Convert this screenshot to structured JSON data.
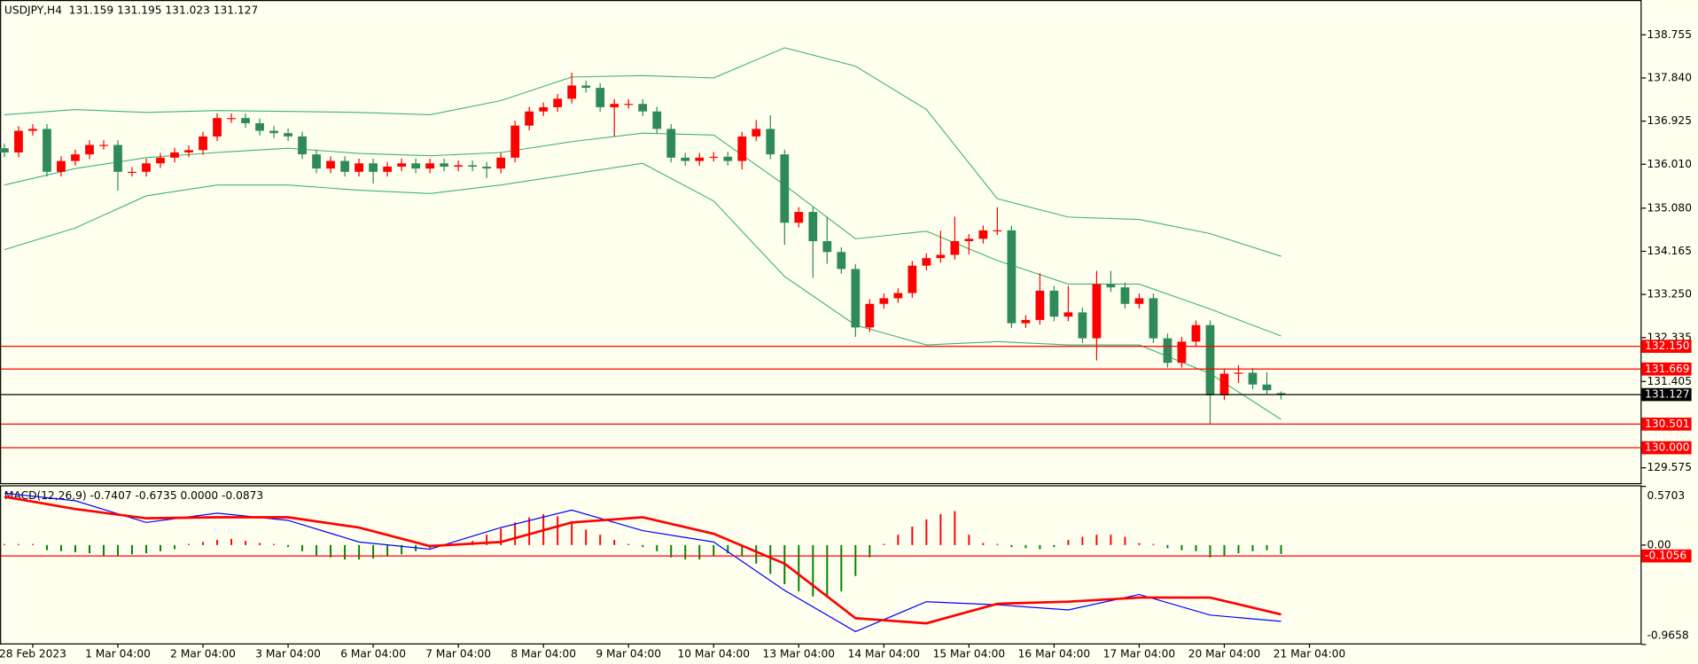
{
  "chart_data": [
    {
      "type": "candlestick",
      "title": "USDJPY,H4  131.159 131.195 131.023 131.127",
      "up_color": "#ff0000",
      "down_color": "#2e8b57",
      "band_color": "#3cb371",
      "open": [
        136.35,
        136.26,
        136.72,
        136.76,
        135.85,
        136.08,
        136.22,
        136.42,
        136.42,
        135.85,
        135.85,
        136.03,
        136.15,
        136.26,
        136.31,
        136.6,
        136.99,
        136.99,
        136.88,
        136.72,
        136.67,
        136.6,
        136.22,
        135.92,
        136.08,
        135.85,
        136.03,
        135.85,
        135.96,
        136.03,
        135.92,
        136.03,
        135.96,
        135.99,
        135.96,
        135.92,
        136.15,
        136.83,
        137.13,
        137.22,
        137.4,
        137.68,
        137.63,
        137.22,
        137.29,
        137.29,
        137.13,
        136.76,
        136.15,
        136.08,
        136.15,
        136.17,
        136.08,
        136.6,
        136.76,
        136.22,
        134.77,
        135.0,
        134.38,
        134.15,
        133.79,
        132.55,
        133.05,
        133.17,
        133.28,
        133.86,
        134.02,
        134.09,
        134.38,
        134.43,
        134.61,
        134.61,
        132.64,
        132.71,
        133.33,
        132.78,
        132.87,
        132.32,
        133.47,
        133.4,
        133.05,
        133.17,
        132.32,
        131.8,
        132.25,
        132.6,
        131.11,
        131.57,
        131.59,
        131.34,
        131.159
      ],
      "high": [
        136.45,
        136.82,
        136.86,
        136.86,
        136.18,
        136.32,
        136.52,
        136.52,
        136.52,
        135.95,
        136.13,
        136.25,
        136.36,
        136.41,
        136.7,
        137.09,
        137.09,
        137.09,
        136.98,
        136.82,
        136.77,
        136.7,
        136.32,
        136.18,
        136.18,
        136.13,
        136.13,
        136.06,
        136.13,
        136.13,
        136.13,
        136.13,
        136.09,
        136.09,
        136.06,
        136.25,
        136.93,
        137.23,
        137.32,
        137.5,
        137.95,
        137.78,
        137.73,
        137.39,
        137.39,
        137.39,
        137.23,
        136.86,
        136.25,
        136.25,
        136.27,
        136.27,
        136.7,
        136.95,
        137.05,
        136.32,
        135.1,
        135.1,
        134.9,
        134.25,
        133.89,
        133.15,
        133.27,
        133.38,
        133.96,
        134.12,
        134.6,
        134.9,
        134.53,
        134.71,
        135.1,
        134.71,
        132.81,
        133.7,
        133.43,
        133.43,
        132.97,
        133.75,
        133.75,
        133.5,
        133.27,
        133.27,
        132.42,
        132.35,
        132.7,
        132.7,
        131.67,
        131.75,
        131.69,
        131.6,
        131.195
      ],
      "low": [
        136.16,
        136.16,
        136.62,
        135.75,
        135.75,
        135.98,
        136.12,
        136.32,
        135.45,
        135.75,
        135.75,
        135.93,
        136.05,
        136.16,
        136.21,
        136.5,
        136.89,
        136.78,
        136.62,
        136.57,
        136.5,
        136.12,
        135.82,
        135.82,
        135.75,
        135.75,
        135.6,
        135.75,
        135.86,
        135.82,
        135.82,
        135.86,
        135.86,
        135.86,
        135.72,
        135.82,
        136.05,
        136.73,
        137.03,
        137.12,
        137.3,
        137.53,
        137.12,
        136.6,
        137.19,
        137.03,
        136.66,
        136.05,
        135.98,
        135.98,
        136.07,
        135.98,
        135.9,
        136.5,
        136.12,
        134.3,
        134.67,
        133.6,
        133.9,
        133.69,
        132.35,
        132.45,
        132.95,
        133.07,
        133.18,
        133.76,
        133.92,
        133.99,
        134.1,
        134.33,
        134.51,
        132.54,
        132.54,
        132.61,
        132.68,
        132.68,
        132.22,
        131.85,
        133.3,
        132.95,
        132.95,
        132.22,
        131.7,
        131.7,
        132.15,
        130.5,
        131.01,
        131.37,
        131.24,
        131.12,
        131.023
      ],
      "close": [
        136.26,
        136.72,
        136.76,
        135.85,
        136.08,
        136.22,
        136.42,
        136.42,
        135.85,
        135.85,
        136.03,
        136.15,
        136.26,
        136.31,
        136.6,
        136.99,
        136.99,
        136.88,
        136.72,
        136.67,
        136.6,
        136.22,
        135.92,
        136.08,
        135.85,
        136.03,
        135.85,
        135.96,
        136.03,
        135.92,
        136.03,
        135.96,
        135.99,
        135.96,
        135.92,
        136.15,
        136.83,
        137.13,
        137.22,
        137.4,
        137.68,
        137.63,
        137.22,
        137.29,
        137.29,
        137.13,
        136.76,
        136.15,
        136.08,
        136.15,
        136.17,
        136.08,
        136.6,
        136.76,
        136.22,
        134.77,
        135.0,
        134.38,
        134.15,
        133.79,
        132.55,
        133.05,
        133.17,
        133.28,
        133.86,
        134.02,
        134.09,
        134.38,
        134.43,
        134.61,
        134.61,
        132.64,
        132.71,
        133.33,
        132.78,
        132.87,
        132.32,
        133.47,
        133.4,
        133.05,
        133.17,
        132.32,
        131.8,
        132.25,
        132.6,
        131.11,
        131.57,
        131.59,
        131.34,
        131.22,
        131.127
      ],
      "band_x": [
        0,
        5,
        10,
        15,
        20,
        25,
        30,
        35,
        40,
        45,
        50,
        55,
        60,
        65,
        70,
        75,
        80,
        85,
        90
      ],
      "bands": [
        {
          "values": [
            137.06,
            137.17,
            137.11,
            137.15,
            137.13,
            137.11,
            137.06,
            137.36,
            137.86,
            137.89,
            137.84,
            138.48,
            138.09,
            137.17,
            135.28,
            134.89,
            134.84,
            134.54,
            134.06
          ]
        },
        {
          "values": [
            135.57,
            135.92,
            136.15,
            136.26,
            136.35,
            136.24,
            136.19,
            136.26,
            136.49,
            136.67,
            136.63,
            135.57,
            134.43,
            134.59,
            133.97,
            133.47,
            133.47,
            132.94,
            132.37
          ]
        },
        {
          "values": [
            134.2,
            134.66,
            135.34,
            135.57,
            135.57,
            135.46,
            135.39,
            135.57,
            135.8,
            136.03,
            135.23,
            133.63,
            132.6,
            132.18,
            132.25,
            132.18,
            132.18,
            131.57,
            130.6
          ]
        }
      ],
      "ylim": [
        129.25,
        139.47
      ],
      "yticks": [
        138.755,
        {
          "value": 137.84,
          "label": "137.840"
        },
        136.925,
        {
          "value": 136.01,
          "label": "136.010"
        },
        {
          "value": 135.08,
          "label": "135.080"
        },
        134.165,
        {
          "value": 133.25,
          "label": "133.250"
        },
        132.335,
        131.405,
        129.575
      ],
      "levels": [
        {
          "value": 132.15,
          "label": "132.150"
        },
        {
          "value": 131.669,
          "label": "131.669"
        },
        {
          "value": 130.501,
          "label": "130.501"
        },
        {
          "value": 130.0,
          "label": "130.000"
        }
      ],
      "level_color": "#ff0000",
      "current": 131.127,
      "current_color": "#000000",
      "xlim": [
        0,
        92
      ],
      "xticks": [
        {
          "value": 2,
          "label": "28 Feb 2023"
        },
        {
          "value": 8,
          "label": "1 Mar 04:00"
        },
        {
          "value": 14,
          "label": "2 Mar 04:00"
        },
        {
          "value": 20,
          "label": "3 Mar 04:00"
        },
        {
          "value": 26,
          "label": "6 Mar 04:00"
        },
        {
          "value": 32,
          "label": "7 Mar 04:00"
        },
        {
          "value": 38,
          "label": "8 Mar 04:00"
        },
        {
          "value": 44,
          "label": "9 Mar 04:00"
        },
        {
          "value": 50,
          "label": "10 Mar 04:00"
        },
        {
          "value": 56,
          "label": "13 Mar 04:00"
        },
        {
          "value": 62,
          "label": "14 Mar 04:00"
        },
        {
          "value": 68,
          "label": "15 Mar 04:00"
        },
        {
          "value": 74,
          "label": "16 Mar 04:00"
        },
        {
          "value": 80,
          "label": "17 Mar 04:00"
        },
        {
          "value": 86,
          "label": "20 Mar 04:00"
        },
        {
          "value": 92,
          "label": "21 Mar 04:00"
        }
      ]
    },
    {
      "type": "macd",
      "title": "MACD(12,26,9) -0.7407 -0.6735 0.0000 -0.0873",
      "histogram": [
        0.01,
        0.01,
        0.0,
        -0.05,
        -0.06,
        -0.07,
        -0.08,
        -0.1,
        -0.1,
        -0.09,
        -0.08,
        -0.06,
        -0.04,
        0.0,
        0.03,
        0.05,
        0.06,
        0.04,
        0.02,
        0.0,
        -0.02,
        -0.06,
        -0.1,
        -0.12,
        -0.14,
        -0.14,
        -0.13,
        -0.11,
        -0.09,
        -0.06,
        -0.03,
        -0.01,
        0.0,
        0.04,
        0.1,
        0.16,
        0.22,
        0.27,
        0.3,
        0.28,
        0.22,
        0.15,
        0.1,
        0.05,
        0.0,
        -0.02,
        -0.06,
        -0.12,
        -0.14,
        -0.14,
        -0.1,
        -0.08,
        -0.1,
        -0.18,
        -0.28,
        -0.38,
        -0.45,
        -0.5,
        -0.5,
        -0.45,
        -0.3,
        -0.12,
        0.0,
        0.1,
        0.18,
        0.25,
        0.3,
        0.33,
        0.1,
        0.02,
        0.0,
        -0.02,
        -0.03,
        -0.04,
        -0.02,
        0.05,
        0.08,
        0.1,
        0.1,
        0.08,
        0.02,
        0.0,
        -0.03,
        -0.05,
        -0.06,
        -0.12,
        -0.1,
        -0.08,
        -0.06,
        -0.05,
        -0.0873
      ],
      "up_color": "#ff0000",
      "down_color": "#008000",
      "x": [
        0,
        5,
        10,
        15,
        20,
        25,
        30,
        35,
        40,
        45,
        50,
        55,
        60,
        65,
        70,
        75,
        80,
        85,
        90
      ],
      "series": [
        {
          "color": "#0000ff",
          "values": [
            0.505,
            0.43,
            0.22,
            0.31,
            0.24,
            0.03,
            -0.04,
            0.17,
            0.34,
            0.14,
            0.03,
            -0.44,
            -0.84,
            -0.55,
            -0.58,
            -0.63,
            -0.48,
            -0.68,
            -0.7407
          ]
        },
        {
          "color": "#ff0000",
          "values": [
            0.47,
            0.35,
            0.26,
            0.27,
            0.27,
            0.17,
            -0.01,
            0.03,
            0.22,
            0.27,
            0.11,
            -0.18,
            -0.71,
            -0.76,
            -0.57,
            -0.55,
            -0.51,
            -0.51,
            -0.6735
          ]
        }
      ],
      "ylim": [
        -0.9658,
        0.5703
      ],
      "yticks": [
        0.5703,
        {
          "value": 0,
          "label": "0.00"
        },
        -0.9658
      ],
      "level": {
        "value": -0.1056,
        "label": "-0.1056"
      },
      "level_color": "#ff0000"
    }
  ]
}
